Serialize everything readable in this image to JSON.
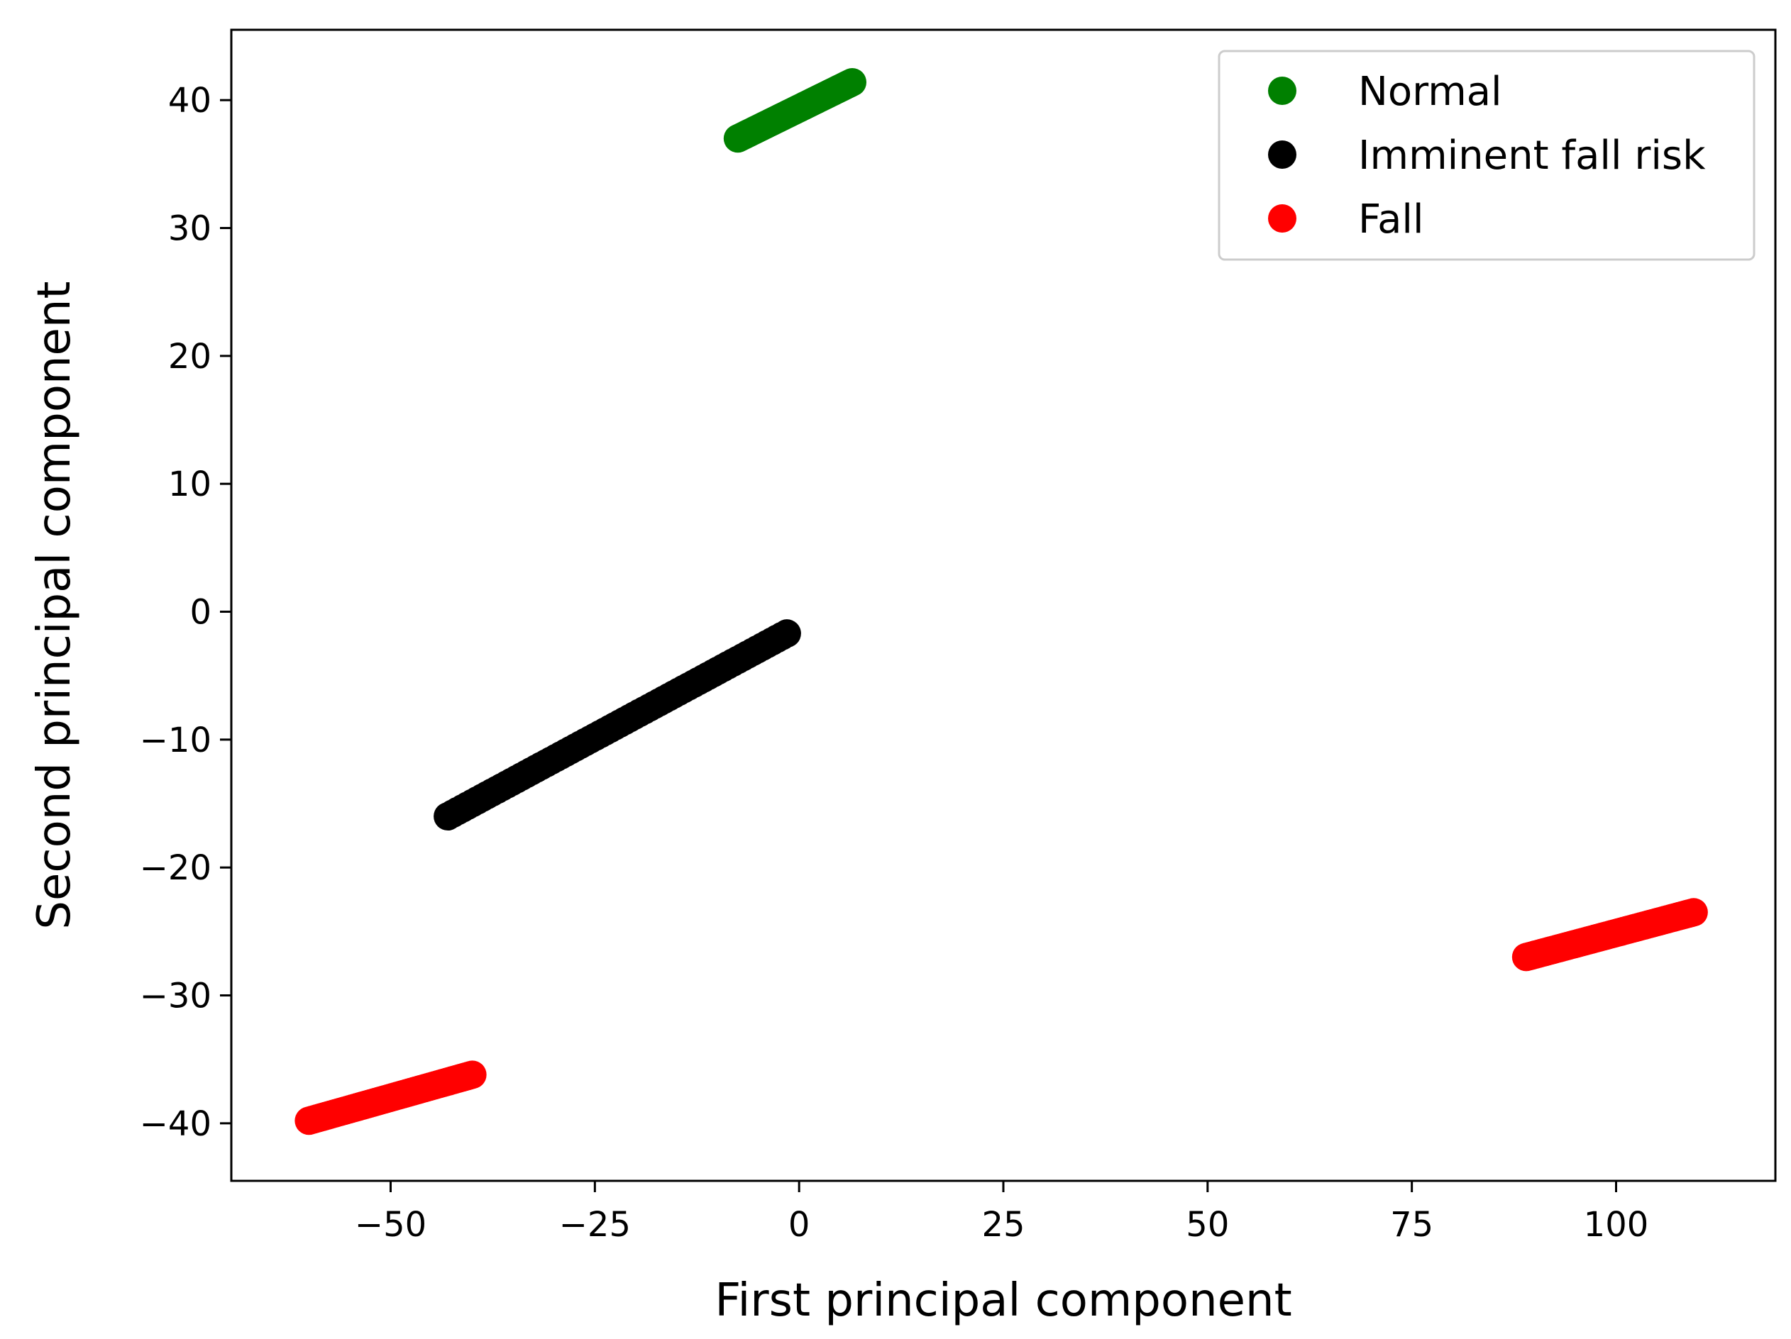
{
  "chart_data": {
    "type": "scatter",
    "title": "",
    "xlabel": "First principal component",
    "ylabel": "Second principal component",
    "xlim": [
      -69.5,
      119.5
    ],
    "ylim": [
      -44.5,
      45.5
    ],
    "xticks": [
      -50,
      -25,
      0,
      25,
      50,
      75,
      100
    ],
    "xtick_labels": [
      "−50",
      "−25",
      "0",
      "25",
      "50",
      "75",
      "100"
    ],
    "yticks": [
      -40,
      -30,
      -20,
      -10,
      0,
      10,
      20,
      30,
      40
    ],
    "ytick_labels": [
      "−40",
      "−30",
      "−20",
      "−10",
      "0",
      "10",
      "20",
      "30",
      "40"
    ],
    "grid": false,
    "legend_position": "top-right",
    "series": [
      {
        "name": "Normal",
        "color": "#008000",
        "segments": [
          {
            "x": [
              -7.5,
              6.5
            ],
            "y": [
              37.0,
              41.4
            ]
          }
        ]
      },
      {
        "name": "Imminent fall risk",
        "color": "#000000",
        "segments": [
          {
            "x": [
              -43.0,
              -1.5
            ],
            "y": [
              -16.0,
              -1.7
            ]
          }
        ]
      },
      {
        "name": "Fall",
        "color": "#ff0000",
        "segments": [
          {
            "x": [
              -60.0,
              -40.0
            ],
            "y": [
              -39.8,
              -36.2
            ]
          },
          {
            "x": [
              89.0,
              109.5
            ],
            "y": [
              -27.0,
              -23.5
            ]
          }
        ]
      }
    ]
  }
}
